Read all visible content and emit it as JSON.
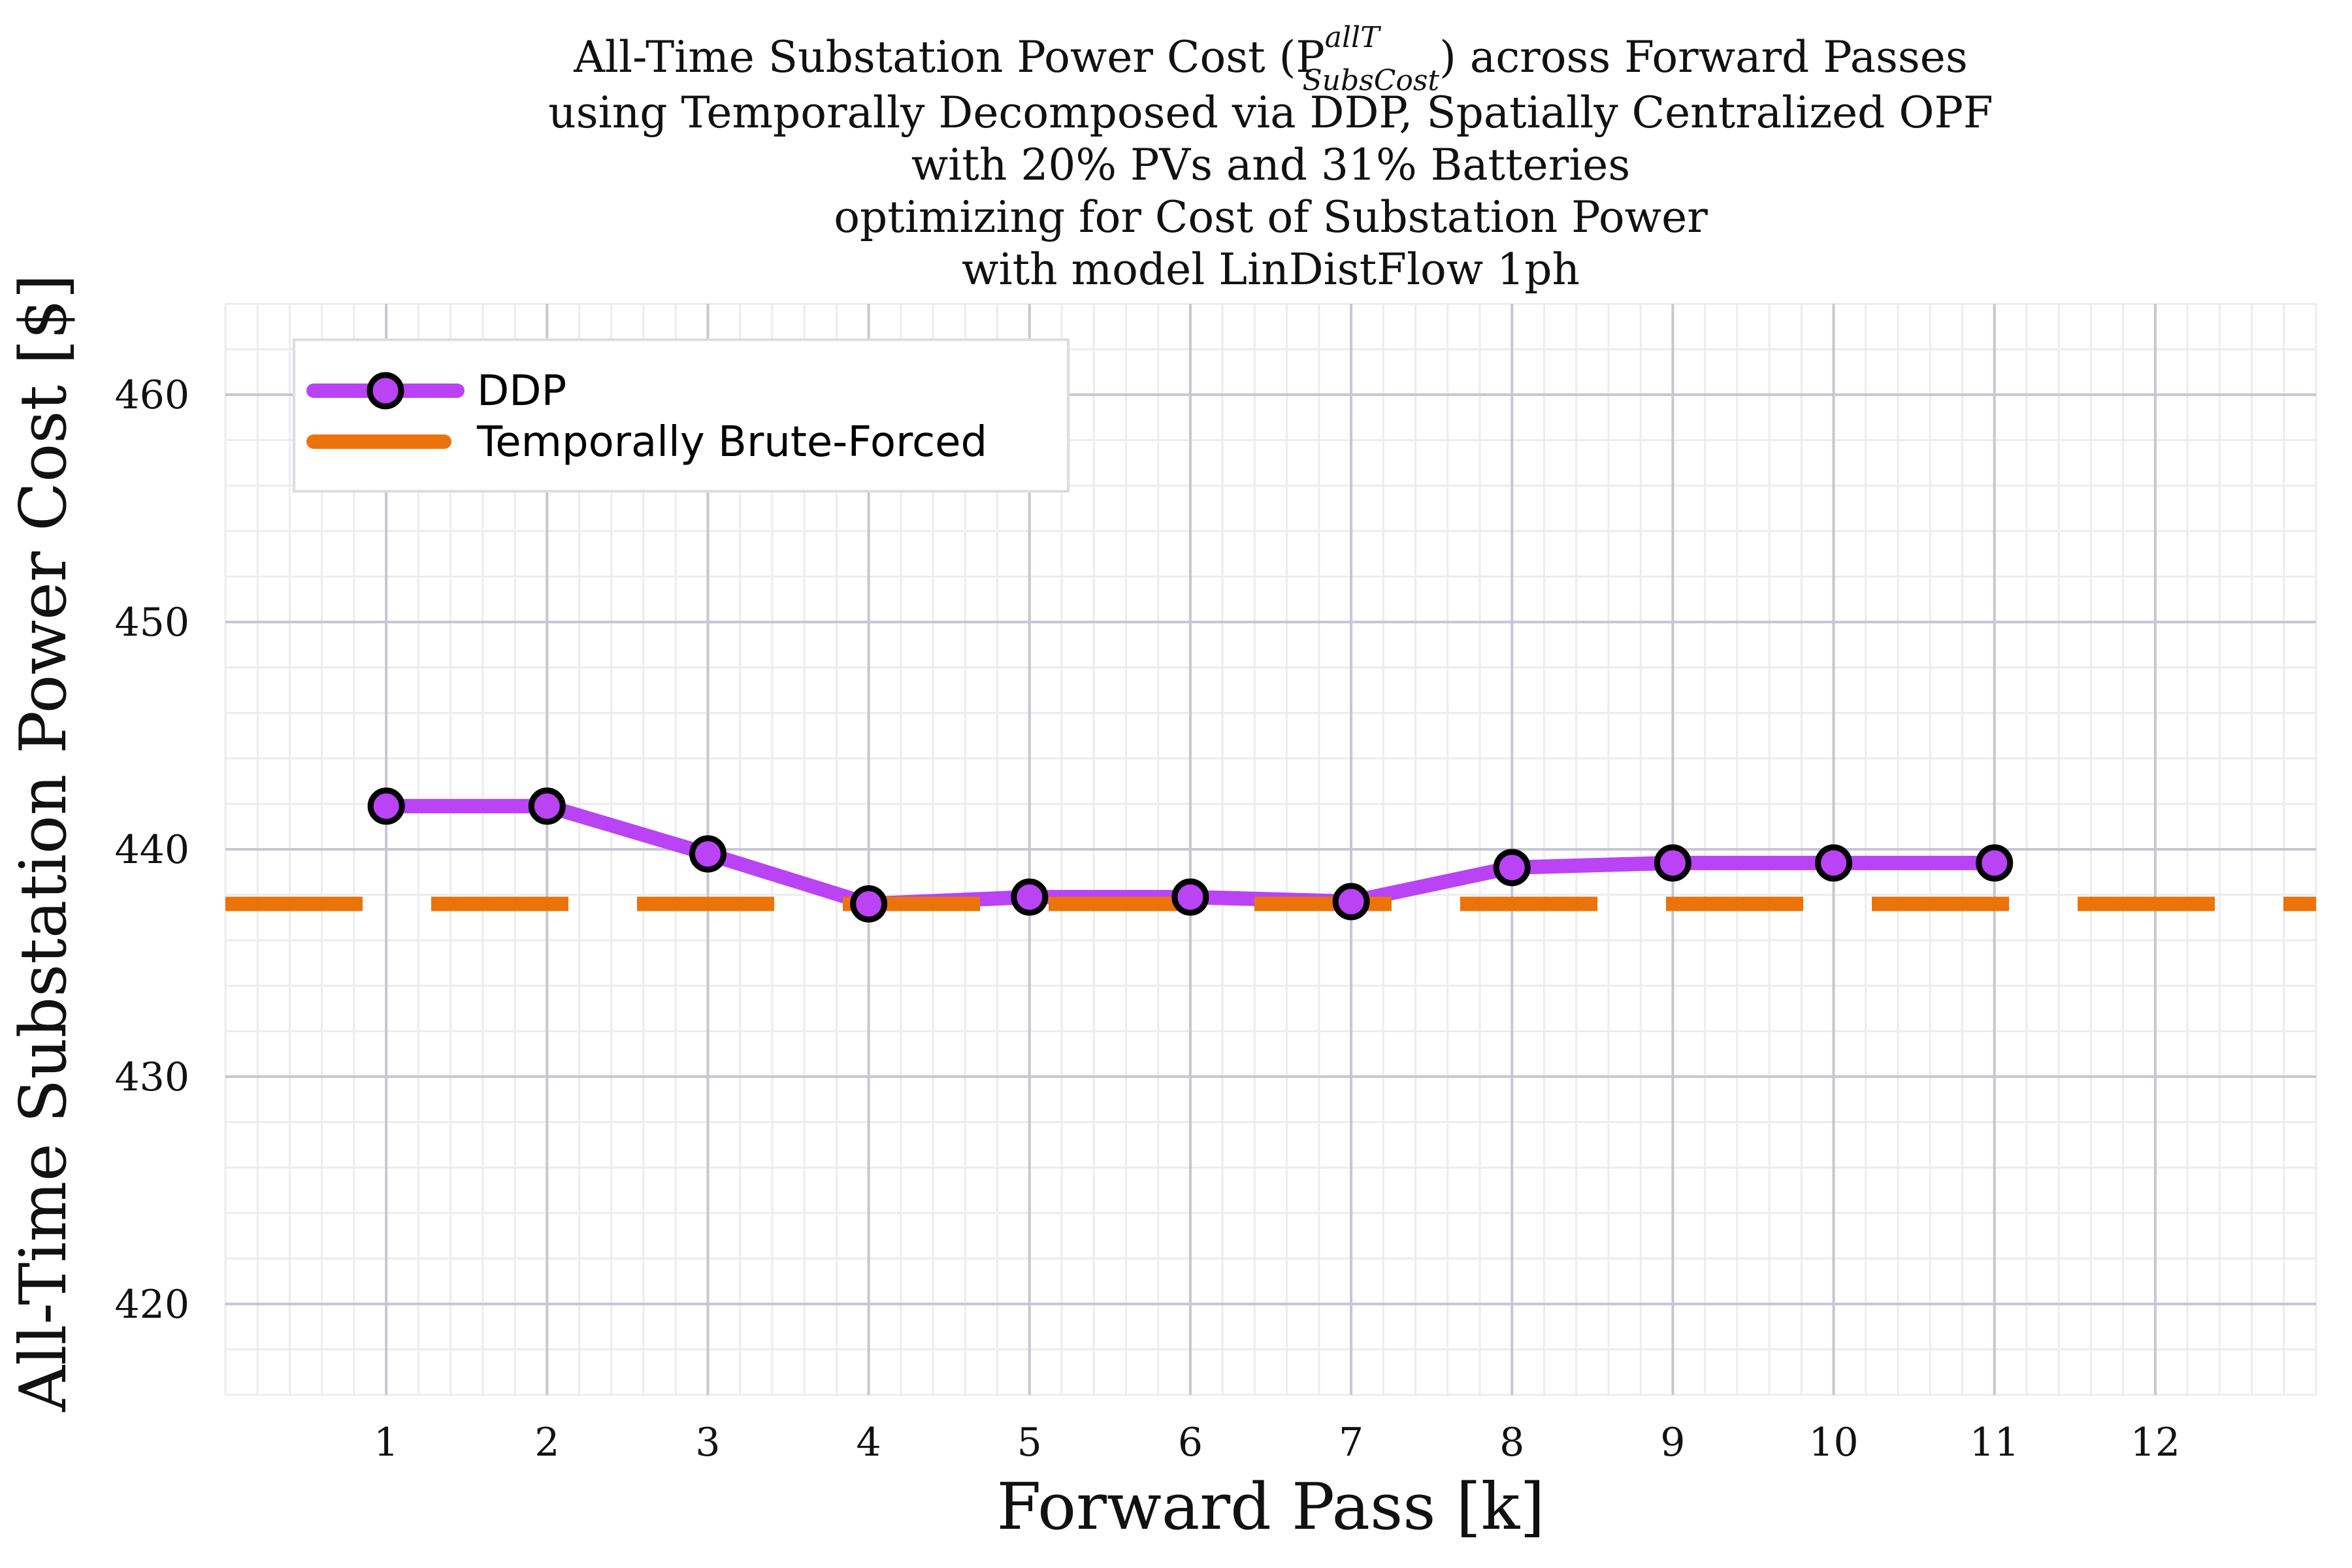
{
  "chart_data": {
    "type": "line",
    "title_lines": [
      "All-Time Substation Power Cost (P",
      "using Temporally Decomposed via DDP, Spatially Centralized OPF",
      "with 20% PVs and 31% Batteries",
      "optimizing for Cost of Substation Power",
      "with model LinDistFlow 1ph"
    ],
    "title_symbol": {
      "base": "P",
      "superscript": "allT",
      "subscript": "SubsCost",
      "suffix": ") across Forward Passes"
    },
    "xlabel": "Forward Pass [k]",
    "ylabel": "All-Time Substation Power Cost [$]",
    "x_ticks": [
      1,
      2,
      3,
      4,
      5,
      6,
      7,
      8,
      9,
      10,
      11,
      12
    ],
    "y_ticks": [
      420,
      430,
      440,
      450,
      460
    ],
    "xlim": [
      0,
      13
    ],
    "ylim": [
      416,
      464
    ],
    "grid": true,
    "legend_position": "top-left",
    "series": [
      {
        "name": "DDP",
        "color": "#b943f5",
        "marker": "circle",
        "x": [
          1,
          2,
          3,
          4,
          5,
          6,
          7,
          8,
          9,
          10,
          11
        ],
        "values": [
          441.9,
          441.9,
          439.8,
          437.6,
          437.9,
          437.9,
          437.7,
          439.2,
          439.4,
          439.4,
          439.4
        ]
      },
      {
        "name": "Temporally Brute-Forced",
        "color": "#ec7309",
        "style": "dashed",
        "constant": 437.6
      }
    ]
  }
}
